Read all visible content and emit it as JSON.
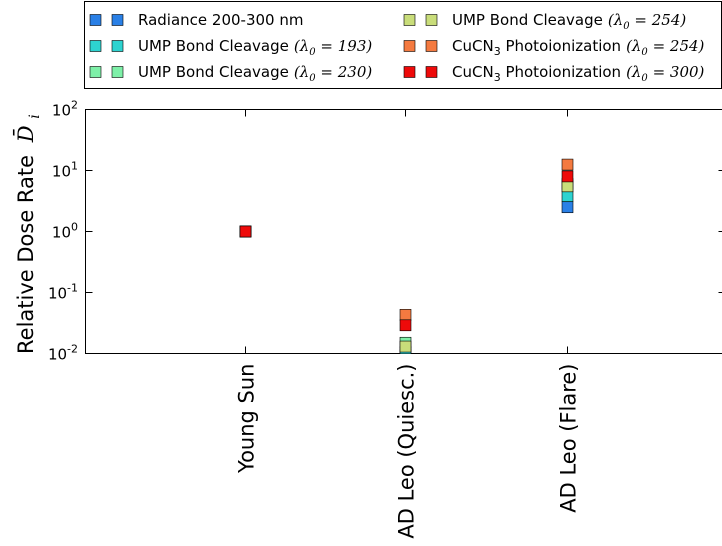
{
  "chart_data": {
    "type": "scatter",
    "categories": [
      "Young Sun",
      "AD Leo (Quiesc.)",
      "AD Leo (Flare)"
    ],
    "ylabel": "Relative Dose Rate",
    "ylabel_math": "D̄",
    "ylabel_sub": "i",
    "yscale": "log",
    "ylim": [
      0.01,
      100
    ],
    "yticks": [
      {
        "value": 0.01,
        "base": "10",
        "exp": "-2"
      },
      {
        "value": 0.1,
        "base": "10",
        "exp": "-1"
      },
      {
        "value": 1,
        "base": "10",
        "exp": "0"
      },
      {
        "value": 10,
        "base": "10",
        "exp": "1"
      },
      {
        "value": 100,
        "base": "10",
        "exp": "2"
      }
    ],
    "legend_position": "top",
    "series": [
      {
        "name": "Radiance 200-300 nm",
        "sub_label": "",
        "lambda_sub": "",
        "lambda_val": "",
        "color": "#2a80e6",
        "values": [
          1.0,
          0.0105,
          2.5
        ]
      },
      {
        "name": "UMP Bond Cleavage",
        "sub_label": "",
        "lambda_sub": "0",
        "lambda_val": "193",
        "color": "#2dd3d0",
        "values": [
          1.0,
          0.0095,
          3.8
        ]
      },
      {
        "name": "UMP Bond Cleavage",
        "sub_label": "",
        "lambda_sub": "0",
        "lambda_val": "230",
        "color": "#7ef0a8",
        "values": [
          1.0,
          0.015,
          6.0
        ]
      },
      {
        "name": "UMP Bond Cleavage",
        "sub_label": "",
        "lambda_sub": "0",
        "lambda_val": "254",
        "color": "#c9dd7a",
        "values": [
          1.0,
          0.013,
          5.5
        ]
      },
      {
        "name": "CuCN",
        "sub_label": "3",
        "suffix": " Photoionization",
        "lambda_sub": "0",
        "lambda_val": "254",
        "color": "#f47a40",
        "values": [
          1.0,
          0.043,
          12.5
        ]
      },
      {
        "name": "CuCN",
        "sub_label": "3",
        "suffix": " Photoionization",
        "lambda_sub": "0",
        "lambda_val": "300",
        "color": "#ee0a0a",
        "values": [
          1.0,
          0.029,
          8.0
        ]
      }
    ]
  }
}
